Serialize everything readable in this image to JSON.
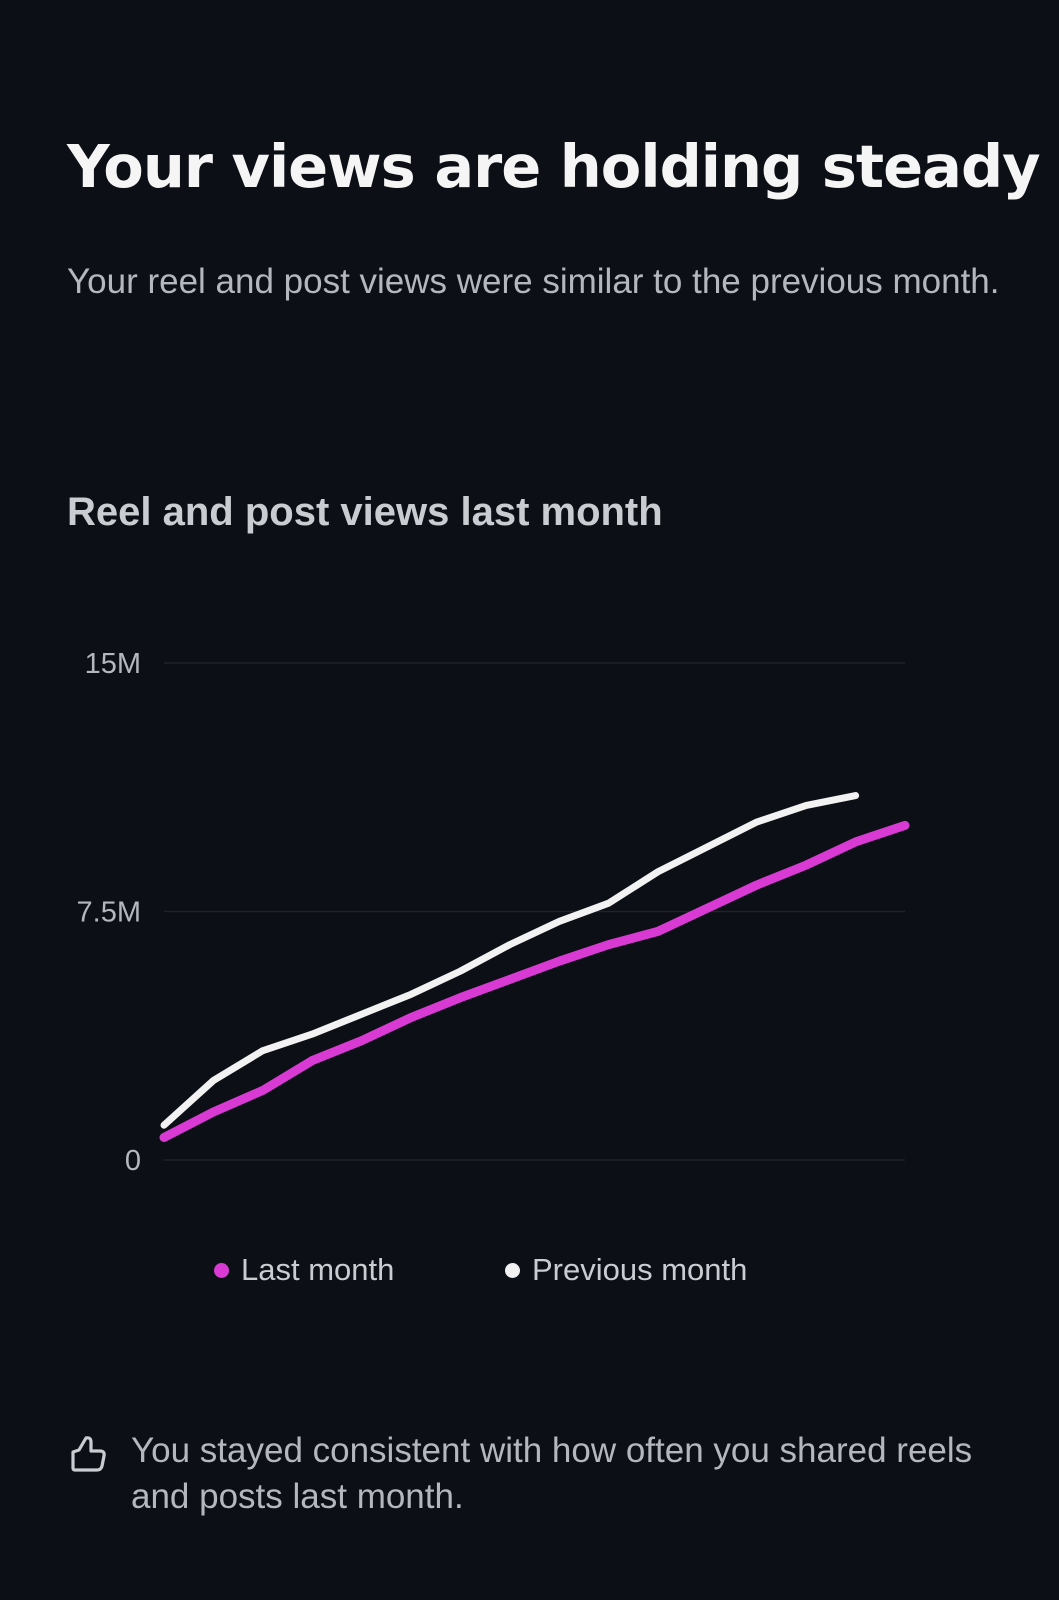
{
  "header": {
    "title": "Your views are holding steady",
    "subtitle": "Your reel and post views were similar to the previous month."
  },
  "chart_data": {
    "type": "line",
    "title": "Reel and post views last month",
    "xlabel": "",
    "ylabel": "",
    "ylim": [
      0,
      15000000
    ],
    "yticks": [
      {
        "value": 15000000,
        "label": "15M"
      },
      {
        "value": 7500000,
        "label": "7.5M"
      },
      {
        "value": 0,
        "label": "0"
      }
    ],
    "grid": true,
    "legend_placement": "bottom",
    "series": [
      {
        "name": "Last month",
        "color": "#d93ad4",
        "values": [
          0.68,
          1.45,
          2.1,
          3.0,
          3.6,
          4.3,
          4.9,
          5.45,
          6.0,
          6.5,
          6.9,
          7.6,
          8.3,
          8.9,
          9.6,
          10.1
        ]
      },
      {
        "name": "Previous month",
        "color": "#f2f2f2",
        "values": [
          1.05,
          2.4,
          3.3,
          3.8,
          4.4,
          5.0,
          5.7,
          6.5,
          7.2,
          7.75,
          8.7,
          9.45,
          10.2,
          10.7,
          11.0
        ]
      }
    ],
    "value_unit": "millions"
  },
  "legend": {
    "last": "Last month",
    "previous": "Previous month"
  },
  "footer": {
    "icon": "thumbs-up-icon",
    "text": "You stayed consistent with how often you shared reels and posts last month."
  }
}
